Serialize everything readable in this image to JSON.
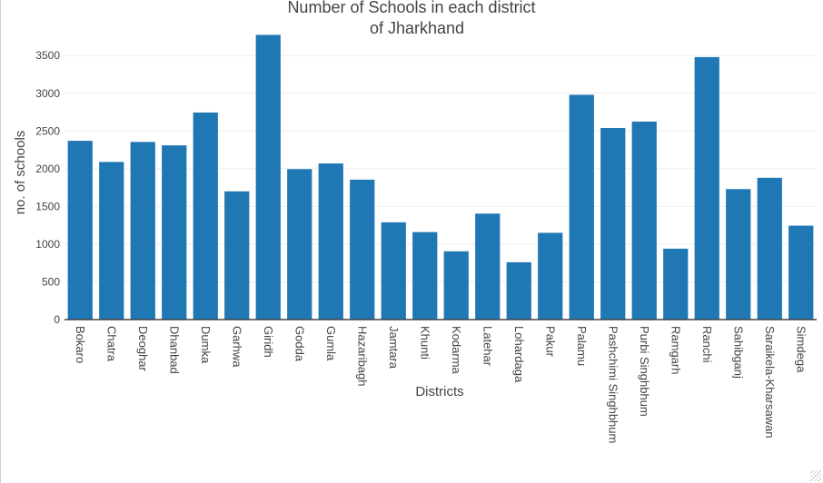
{
  "chart_data": {
    "type": "bar",
    "title_lines": [
      "Number of Schools in each district",
      "of Jharkhand"
    ],
    "xlabel": "Districts",
    "ylabel": "no. of schools",
    "categories": [
      "Bokaro",
      "Chatra",
      "Deoghar",
      "Dhanbad",
      "Dumka",
      "Garhwa",
      "Giridh",
      "Godda",
      "Gumla",
      "Hazaribagh",
      "Jamtara",
      "Khunti",
      "Kodarma",
      "Latehar",
      "Lohardaga",
      "Pakur",
      "Palamu",
      "Pashchimi Singhbhum",
      "Purbi Singhbhum",
      "Ramgarh",
      "Ranchi",
      "Sahibganj",
      "Saraikela-Kharsawan",
      "Simdega"
    ],
    "values": [
      2370,
      2090,
      2355,
      2310,
      2745,
      1700,
      3775,
      1995,
      2070,
      1855,
      1290,
      1160,
      905,
      1405,
      760,
      1150,
      2980,
      2540,
      2625,
      940,
      3480,
      1730,
      1880,
      1245
    ],
    "yticks": [
      0,
      500,
      1000,
      1500,
      2000,
      2500,
      3000,
      3500
    ],
    "ylim": [
      0,
      3900
    ],
    "grid": true,
    "legend": "none",
    "bar_color": "#1f77b4"
  }
}
